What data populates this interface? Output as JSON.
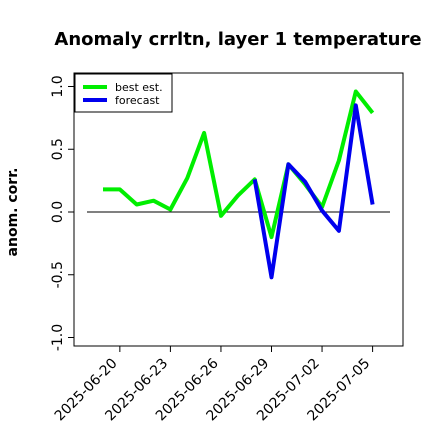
{
  "chart_data": {
    "type": "line",
    "title": "Anomaly crrltn, layer 1 temperature",
    "xlabel": "",
    "ylabel": "anom. corr.",
    "ylim": [
      -1.0,
      1.0
    ],
    "yticks": [
      "-1.0",
      "-0.5",
      "0.0",
      "0.5",
      "1.0"
    ],
    "x_tick_labels": [
      "2025-06-20",
      "2025-06-23",
      "2025-06-26",
      "2025-06-29",
      "2025-07-02",
      "2025-07-05"
    ],
    "highlighted_tick": "2025-06-26",
    "highlight_color": "#228B22",
    "reference_line": 0.0,
    "x": [
      "2025-06-19",
      "2025-06-20",
      "2025-06-21",
      "2025-06-22",
      "2025-06-23",
      "2025-06-24",
      "2025-06-25",
      "2025-06-26",
      "2025-06-27",
      "2025-06-28",
      "2025-06-29",
      "2025-06-30",
      "2025-07-01",
      "2025-07-02",
      "2025-07-03",
      "2025-07-04",
      "2025-07-05"
    ],
    "series": [
      {
        "name": "best est.",
        "color": "#00ee00",
        "values": [
          0.18,
          0.18,
          0.06,
          0.09,
          0.02,
          0.27,
          0.63,
          -0.03,
          0.13,
          0.26,
          -0.2,
          0.38,
          0.22,
          0.04,
          0.41,
          0.96,
          0.79
        ]
      },
      {
        "name": "forecast",
        "color": "#0000ee",
        "values": [
          null,
          null,
          null,
          null,
          null,
          null,
          null,
          -0.04,
          null,
          0.26,
          -0.52,
          0.38,
          0.24,
          0.01,
          -0.15,
          0.85,
          0.06
        ]
      }
    ],
    "legend_position": "top-left",
    "grid": false
  }
}
